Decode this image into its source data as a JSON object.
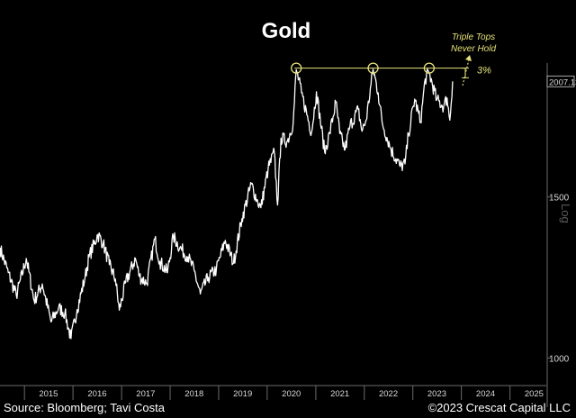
{
  "chart_data": {
    "type": "line",
    "title": "Gold",
    "scale": "log",
    "axis_label": "Log",
    "ylim": [
      950,
      2150
    ],
    "x_range": [
      "2014-07-01",
      "2025-10-01"
    ],
    "x_tick_labels": [
      "2015",
      "2016",
      "2017",
      "2018",
      "2019",
      "2020",
      "2021",
      "2022",
      "2023",
      "2024",
      "2025"
    ],
    "y_tick_labels": [
      "1000",
      "1500"
    ],
    "last_value_label": "2007.13",
    "resistance_level": 2075,
    "annotations": {
      "triple_tops_line1": "Triple Tops",
      "triple_tops_line2": "Never Hold",
      "gap_label": "3%"
    },
    "peaks": [
      {
        "x": "2020-08-07",
        "y": 2067
      },
      {
        "x": "2022-03-08",
        "y": 2069
      },
      {
        "x": "2023-05-04",
        "y": 2050
      }
    ],
    "series": [
      {
        "values": [
          [
            "2014-07-01",
            1320
          ],
          [
            "2014-09-01",
            1240
          ],
          [
            "2014-11-01",
            1170
          ],
          [
            "2015-01-15",
            1285
          ],
          [
            "2015-03-15",
            1155
          ],
          [
            "2015-05-15",
            1205
          ],
          [
            "2015-07-20",
            1095
          ],
          [
            "2015-09-15",
            1135
          ],
          [
            "2015-11-01",
            1120
          ],
          [
            "2015-12-17",
            1050
          ],
          [
            "2016-02-01",
            1130
          ],
          [
            "2016-04-01",
            1225
          ],
          [
            "2016-05-01",
            1290
          ],
          [
            "2016-07-06",
            1365
          ],
          [
            "2016-08-15",
            1335
          ],
          [
            "2016-10-01",
            1265
          ],
          [
            "2016-11-15",
            1220
          ],
          [
            "2016-12-15",
            1128
          ],
          [
            "2017-02-01",
            1210
          ],
          [
            "2017-04-15",
            1285
          ],
          [
            "2017-05-15",
            1228
          ],
          [
            "2017-07-10",
            1207
          ],
          [
            "2017-09-08",
            1350
          ],
          [
            "2017-10-15",
            1275
          ],
          [
            "2017-12-12",
            1240
          ],
          [
            "2018-01-25",
            1358
          ],
          [
            "2018-03-15",
            1320
          ],
          [
            "2018-05-15",
            1290
          ],
          [
            "2018-07-01",
            1245
          ],
          [
            "2018-08-16",
            1175
          ],
          [
            "2018-10-15",
            1225
          ],
          [
            "2018-12-15",
            1250
          ],
          [
            "2019-02-20",
            1345
          ],
          [
            "2019-04-23",
            1270
          ],
          [
            "2019-06-25",
            1420
          ],
          [
            "2019-09-04",
            1550
          ],
          [
            "2019-10-15",
            1490
          ],
          [
            "2019-11-15",
            1460
          ],
          [
            "2020-01-08",
            1610
          ],
          [
            "2020-02-24",
            1680
          ],
          [
            "2020-03-19",
            1470
          ],
          [
            "2020-04-14",
            1740
          ],
          [
            "2020-06-01",
            1725
          ],
          [
            "2020-07-15",
            1810
          ],
          [
            "2020-08-07",
            2067
          ],
          [
            "2020-09-15",
            1950
          ],
          [
            "2020-11-30",
            1765
          ],
          [
            "2021-01-06",
            1955
          ],
          [
            "2021-03-08",
            1680
          ],
          [
            "2021-04-15",
            1760
          ],
          [
            "2021-06-01",
            1905
          ],
          [
            "2021-06-30",
            1760
          ],
          [
            "2021-08-09",
            1690
          ],
          [
            "2021-09-15",
            1795
          ],
          [
            "2021-11-16",
            1870
          ],
          [
            "2021-12-15",
            1770
          ],
          [
            "2022-01-15",
            1820
          ],
          [
            "2022-03-08",
            2069
          ],
          [
            "2022-04-15",
            1950
          ],
          [
            "2022-05-15",
            1810
          ],
          [
            "2022-07-21",
            1690
          ],
          [
            "2022-09-28",
            1620
          ],
          [
            "2022-11-03",
            1630
          ],
          [
            "2022-11-30",
            1760
          ],
          [
            "2023-01-15",
            1920
          ],
          [
            "2023-02-28",
            1810
          ],
          [
            "2023-04-04",
            2020
          ],
          [
            "2023-05-04",
            2050
          ],
          [
            "2023-06-30",
            1915
          ],
          [
            "2023-08-21",
            1885
          ],
          [
            "2023-09-15",
            1925
          ],
          [
            "2023-10-06",
            1820
          ],
          [
            "2023-10-27",
            2007
          ]
        ]
      }
    ]
  },
  "footer": {
    "source": "Source: Bloomberg; Tavi Costa",
    "copyright": "©2023 Crescat Capital LLC"
  },
  "colors": {
    "background": "#000000",
    "line": "#ffffff",
    "annotation": "#e6e27a",
    "axis": "#6b6b6b"
  }
}
